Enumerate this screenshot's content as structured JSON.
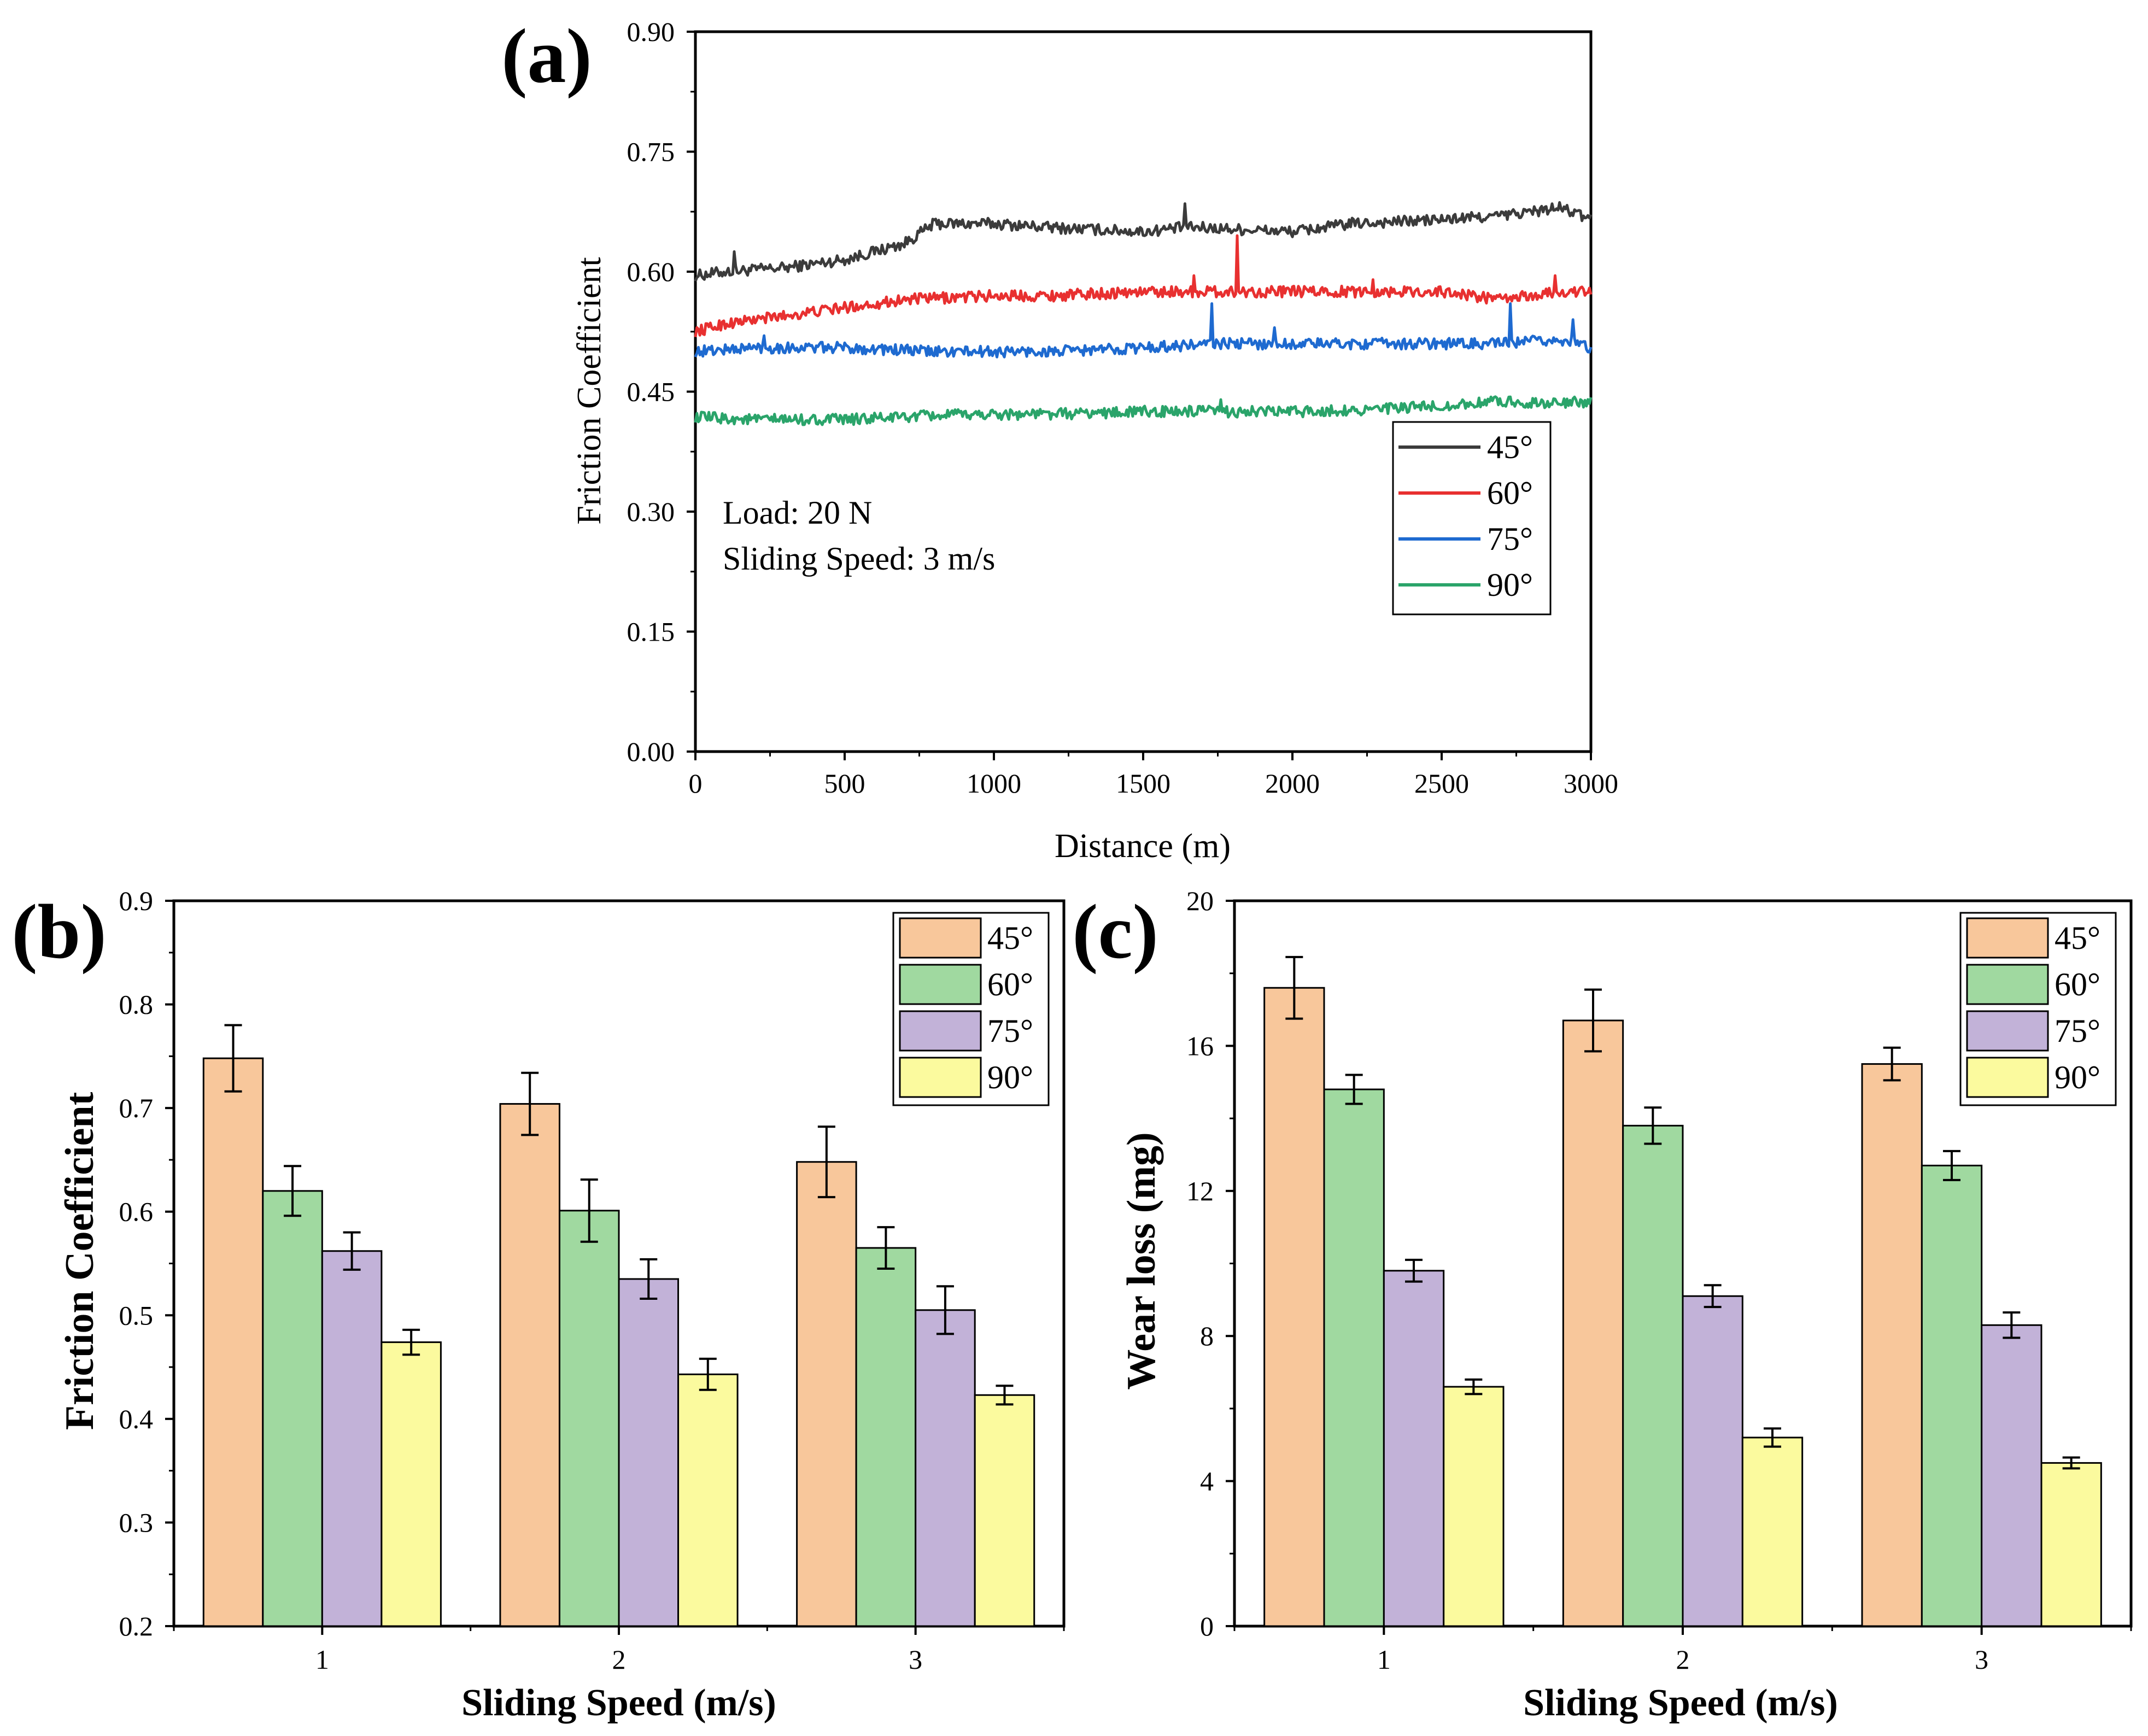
{
  "chart_data": [
    {
      "panel": "(a)",
      "type": "line",
      "title": "",
      "xlabel": "Distance (m)",
      "ylabel": "Friction Coefficient",
      "xlim": [
        0,
        3000
      ],
      "ylim": [
        0,
        0.9
      ],
      "x_ticks": [
        "0",
        "500",
        "1000",
        "1500",
        "2000",
        "2500",
        "3000"
      ],
      "y_ticks": [
        "0.00",
        "0.15",
        "0.30",
        "0.45",
        "0.60",
        "0.75",
        "0.90"
      ],
      "annotations": [
        "Load: 20 N",
        "Sliding Speed: 3 m/s"
      ],
      "legend_position": "right",
      "series": [
        {
          "name": "45°",
          "color": "#3b3b3b",
          "x": [
            0,
            100,
            300,
            500,
            700,
            800,
            1000,
            1200,
            1500,
            1630,
            1700,
            2000,
            2200,
            2500,
            2700,
            2900,
            3000
          ],
          "y": [
            0.595,
            0.6,
            0.605,
            0.615,
            0.635,
            0.66,
            0.66,
            0.655,
            0.65,
            0.655,
            0.655,
            0.65,
            0.66,
            0.665,
            0.67,
            0.68,
            0.665
          ],
          "spikes": [
            [
              130,
              0.625
            ],
            [
              1640,
              0.685
            ]
          ]
        },
        {
          "name": "60°",
          "color": "#e83030",
          "x": [
            0,
            100,
            300,
            500,
            700,
            1000,
            1200,
            1500,
            1800,
            2000,
            2200,
            2500,
            2700,
            2900,
            3000
          ],
          "y": [
            0.525,
            0.535,
            0.545,
            0.555,
            0.565,
            0.57,
            0.57,
            0.575,
            0.575,
            0.575,
            0.575,
            0.575,
            0.565,
            0.575,
            0.575
          ],
          "spikes": [
            [
              1815,
              0.645
            ],
            [
              1670,
              0.595
            ],
            [
              2880,
              0.595
            ],
            [
              2270,
              0.59
            ]
          ]
        },
        {
          "name": "75°",
          "color": "#1e6ad0",
          "x": [
            0,
            200,
            500,
            800,
            1000,
            1200,
            1500,
            1750,
            2000,
            2300,
            2500,
            2700,
            2900,
            3000
          ],
          "y": [
            0.5,
            0.505,
            0.505,
            0.5,
            0.5,
            0.5,
            0.505,
            0.51,
            0.51,
            0.51,
            0.51,
            0.51,
            0.515,
            0.505
          ],
          "spikes": [
            [
              1730,
              0.56
            ],
            [
              2730,
              0.56
            ],
            [
              2940,
              0.54
            ],
            [
              1940,
              0.53
            ],
            [
              230,
              0.52
            ]
          ]
        },
        {
          "name": "90°",
          "color": "#2aa46a",
          "x": [
            0,
            200,
            500,
            800,
            1000,
            1200,
            1500,
            1750,
            2000,
            2300,
            2500,
            2700,
            2900,
            3000
          ],
          "y": [
            0.418,
            0.415,
            0.415,
            0.42,
            0.422,
            0.422,
            0.425,
            0.425,
            0.425,
            0.428,
            0.432,
            0.438,
            0.435,
            0.438
          ],
          "spikes": [
            [
              1760,
              0.44
            ]
          ]
        }
      ]
    },
    {
      "panel": "(b)",
      "type": "bar",
      "title": "",
      "xlabel": "Sliding Speed (m/s)",
      "ylabel": "Friction Coefficient",
      "categories": [
        "1",
        "2",
        "3"
      ],
      "ylim": [
        0.2,
        0.9
      ],
      "y_ticks": [
        "0.2",
        "0.3",
        "0.4",
        "0.5",
        "0.6",
        "0.7",
        "0.8",
        "0.9"
      ],
      "legend_position": "top-right",
      "series": [
        {
          "name": "45°",
          "color": "#f8c79b",
          "values": [
            0.748,
            0.704,
            0.648
          ],
          "errors": [
            0.032,
            0.03,
            0.034
          ]
        },
        {
          "name": "60°",
          "color": "#a0d9a0",
          "values": [
            0.62,
            0.601,
            0.565
          ],
          "errors": [
            0.024,
            0.03,
            0.02
          ]
        },
        {
          "name": "75°",
          "color": "#c2b2d8",
          "values": [
            0.562,
            0.535,
            0.505
          ],
          "errors": [
            0.018,
            0.019,
            0.023
          ]
        },
        {
          "name": "90°",
          "color": "#fbfa9e",
          "values": [
            0.474,
            0.443,
            0.423
          ],
          "errors": [
            0.012,
            0.015,
            0.009
          ]
        }
      ]
    },
    {
      "panel": "(c)",
      "type": "bar",
      "title": "",
      "xlabel": "Sliding Speed (m/s)",
      "ylabel": "Wear loss (mg)",
      "categories": [
        "1",
        "2",
        "3"
      ],
      "ylim": [
        0,
        20
      ],
      "y_ticks": [
        "0",
        "4",
        "8",
        "12",
        "16",
        "20"
      ],
      "legend_position": "top-right",
      "series": [
        {
          "name": "45°",
          "color": "#f8c79b",
          "values": [
            17.6,
            16.7,
            15.5
          ],
          "errors": [
            0.85,
            0.85,
            0.45
          ]
        },
        {
          "name": "60°",
          "color": "#a0d9a0",
          "values": [
            14.8,
            13.8,
            12.7
          ],
          "errors": [
            0.4,
            0.5,
            0.4
          ]
        },
        {
          "name": "75°",
          "color": "#c2b2d8",
          "values": [
            9.8,
            9.1,
            8.3
          ],
          "errors": [
            0.3,
            0.3,
            0.35
          ]
        },
        {
          "name": "90°",
          "color": "#fbfa9e",
          "values": [
            6.6,
            5.2,
            4.5
          ],
          "errors": [
            0.2,
            0.25,
            0.15
          ]
        }
      ]
    }
  ]
}
